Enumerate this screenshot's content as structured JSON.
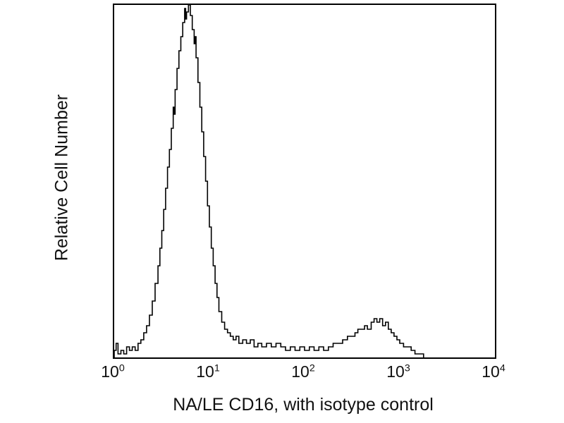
{
  "page": {
    "background": "#ffffff"
  },
  "chart_data": {
    "type": "line",
    "subtype": "flow-cytometry-histogram",
    "title": "",
    "xlabel": "NA/LE CD16, with isotype control",
    "ylabel": "Relative Cell Number",
    "x_scale": "log10",
    "xlim_log": [
      0,
      4
    ],
    "ylim": [
      0,
      100
    ],
    "grid": false,
    "legend": "none",
    "line_color": "#000000",
    "frame_color": "#000000",
    "x_ticks": [
      {
        "base": "10",
        "exp": "0"
      },
      {
        "base": "10",
        "exp": "1"
      },
      {
        "base": "10",
        "exp": "2"
      },
      {
        "base": "10",
        "exp": "3"
      },
      {
        "base": "10",
        "exp": "4"
      }
    ],
    "y_ticks": [],
    "points": [
      [
        0.0,
        2
      ],
      [
        0.02,
        4
      ],
      [
        0.04,
        1
      ],
      [
        0.07,
        2
      ],
      [
        0.1,
        1
      ],
      [
        0.13,
        3
      ],
      [
        0.16,
        2
      ],
      [
        0.19,
        3
      ],
      [
        0.22,
        2
      ],
      [
        0.25,
        4
      ],
      [
        0.28,
        5
      ],
      [
        0.31,
        7
      ],
      [
        0.34,
        9
      ],
      [
        0.37,
        12
      ],
      [
        0.4,
        16
      ],
      [
        0.43,
        21
      ],
      [
        0.46,
        26
      ],
      [
        0.48,
        31
      ],
      [
        0.5,
        36
      ],
      [
        0.52,
        42
      ],
      [
        0.54,
        48
      ],
      [
        0.56,
        54
      ],
      [
        0.58,
        59
      ],
      [
        0.6,
        65
      ],
      [
        0.62,
        71
      ],
      [
        0.63,
        69
      ],
      [
        0.64,
        76
      ],
      [
        0.66,
        82
      ],
      [
        0.68,
        87
      ],
      [
        0.7,
        91
      ],
      [
        0.72,
        95
      ],
      [
        0.74,
        99
      ],
      [
        0.75,
        96
      ],
      [
        0.76,
        98
      ],
      [
        0.78,
        100
      ],
      [
        0.8,
        97
      ],
      [
        0.82,
        93
      ],
      [
        0.84,
        89
      ],
      [
        0.85,
        91
      ],
      [
        0.86,
        85
      ],
      [
        0.88,
        78
      ],
      [
        0.9,
        71
      ],
      [
        0.92,
        64
      ],
      [
        0.94,
        57
      ],
      [
        0.96,
        50
      ],
      [
        0.98,
        43
      ],
      [
        1.0,
        37
      ],
      [
        1.02,
        31
      ],
      [
        1.04,
        26
      ],
      [
        1.06,
        21
      ],
      [
        1.08,
        17
      ],
      [
        1.1,
        13
      ],
      [
        1.13,
        10
      ],
      [
        1.16,
        8
      ],
      [
        1.19,
        7
      ],
      [
        1.22,
        6
      ],
      [
        1.25,
        5
      ],
      [
        1.28,
        6
      ],
      [
        1.31,
        4
      ],
      [
        1.35,
        5
      ],
      [
        1.39,
        4
      ],
      [
        1.43,
        5
      ],
      [
        1.47,
        3
      ],
      [
        1.51,
        4
      ],
      [
        1.55,
        3
      ],
      [
        1.6,
        4
      ],
      [
        1.65,
        3
      ],
      [
        1.7,
        4
      ],
      [
        1.75,
        3
      ],
      [
        1.8,
        2
      ],
      [
        1.85,
        3
      ],
      [
        1.9,
        2
      ],
      [
        1.95,
        3
      ],
      [
        2.0,
        2
      ],
      [
        2.05,
        3
      ],
      [
        2.1,
        2
      ],
      [
        2.15,
        3
      ],
      [
        2.2,
        2
      ],
      [
        2.25,
        3
      ],
      [
        2.3,
        4
      ],
      [
        2.35,
        4
      ],
      [
        2.4,
        5
      ],
      [
        2.45,
        6
      ],
      [
        2.5,
        6
      ],
      [
        2.53,
        7
      ],
      [
        2.56,
        8
      ],
      [
        2.6,
        8
      ],
      [
        2.63,
        9
      ],
      [
        2.66,
        8
      ],
      [
        2.7,
        10
      ],
      [
        2.73,
        11
      ],
      [
        2.76,
        10
      ],
      [
        2.79,
        11
      ],
      [
        2.82,
        9
      ],
      [
        2.85,
        10
      ],
      [
        2.88,
        8
      ],
      [
        2.91,
        7
      ],
      [
        2.94,
        6
      ],
      [
        2.97,
        5
      ],
      [
        3.0,
        4
      ],
      [
        3.04,
        3
      ],
      [
        3.08,
        3
      ],
      [
        3.12,
        2
      ],
      [
        3.16,
        1
      ],
      [
        3.2,
        1
      ],
      [
        3.25,
        0
      ]
    ]
  }
}
